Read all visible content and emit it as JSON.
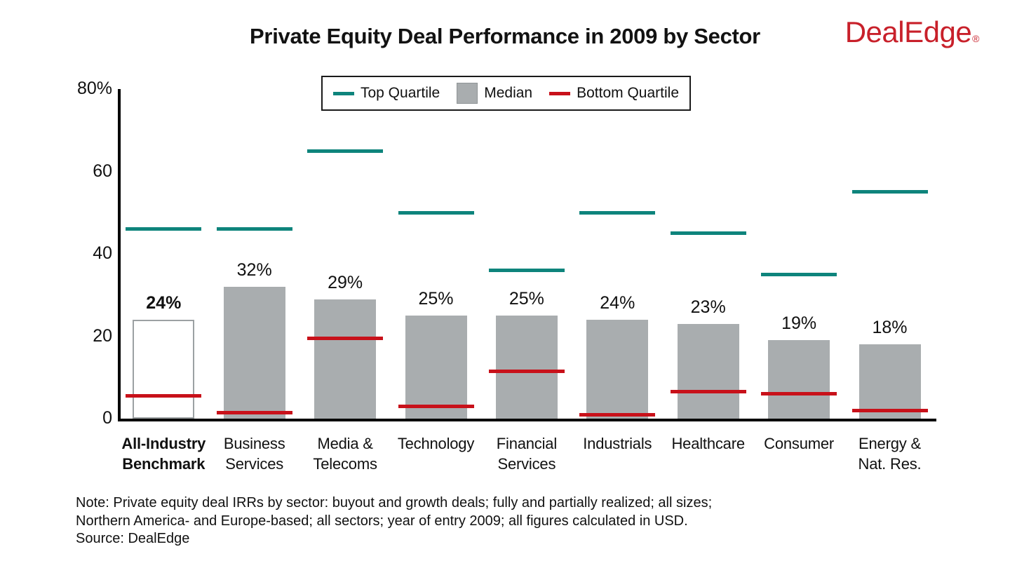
{
  "header": {
    "title": "Private Equity Deal Performance in 2009 by Sector",
    "logo_text": "DealEdge",
    "logo_reg": "®"
  },
  "colors": {
    "top_quartile": "#0E847C",
    "median_bar": "#A9ADAF",
    "bottom_quartile": "#C8111A",
    "logo_red": "#C8202A",
    "benchmark_bar_fill": "#FFFFFF",
    "benchmark_bar_border": "#9CA1A3"
  },
  "legend": {
    "items": [
      {
        "label": "Top Quartile",
        "swatch": "line",
        "color_key": "top_quartile"
      },
      {
        "label": "Median",
        "swatch": "box",
        "color_key": "median_bar"
      },
      {
        "label": "Bottom Quartile",
        "swatch": "line",
        "color_key": "bottom_quartile"
      }
    ]
  },
  "y_axis": {
    "ticks": [
      {
        "label": "80%",
        "value": 80
      },
      {
        "label": "60",
        "value": 60
      },
      {
        "label": "40",
        "value": 40
      },
      {
        "label": "20",
        "value": 20
      },
      {
        "label": "0",
        "value": 0
      }
    ]
  },
  "chart_data": {
    "type": "bar",
    "title": "Private Equity Deal Performance in 2009 by Sector",
    "ylim": [
      0,
      80
    ],
    "grid": false,
    "legend_position": "top",
    "benchmark_index": 0,
    "categories": [
      "All-Industry Benchmark",
      "Business Services",
      "Media & Telecoms",
      "Technology",
      "Financial Services",
      "Industrials",
      "Healthcare",
      "Consumer",
      "Energy & Nat. Res."
    ],
    "category_lines": [
      [
        "All-Industry",
        "Benchmark"
      ],
      [
        "Business",
        "Services"
      ],
      [
        "Media &",
        "Telecoms"
      ],
      [
        "Technology"
      ],
      [
        "Financial",
        "Services"
      ],
      [
        "Industrials"
      ],
      [
        "Healthcare"
      ],
      [
        "Consumer"
      ],
      [
        "Energy &",
        "Nat. Res."
      ]
    ],
    "series": [
      {
        "name": "Top Quartile",
        "style": "tick-line",
        "values": [
          46,
          46,
          65,
          50,
          36,
          50,
          45,
          35,
          55
        ]
      },
      {
        "name": "Median",
        "style": "bar",
        "values": [
          24,
          32,
          29,
          25,
          25,
          24,
          23,
          19,
          18
        ],
        "labels": [
          "24%",
          "32%",
          "29%",
          "25%",
          "25%",
          "24%",
          "23%",
          "19%",
          "18%"
        ]
      },
      {
        "name": "Bottom Quartile",
        "style": "tick-line",
        "values": [
          5.5,
          1.5,
          19.5,
          3,
          11.5,
          1,
          6.5,
          6,
          2
        ]
      }
    ]
  },
  "footnote": {
    "line1": "Note: Private equity deal IRRs by sector: buyout and growth deals; fully and partially realized; all sizes;",
    "line2": "Northern America- and Europe-based; all sectors; year of entry 2009; all figures calculated in USD.",
    "line3": "Source: DealEdge"
  }
}
